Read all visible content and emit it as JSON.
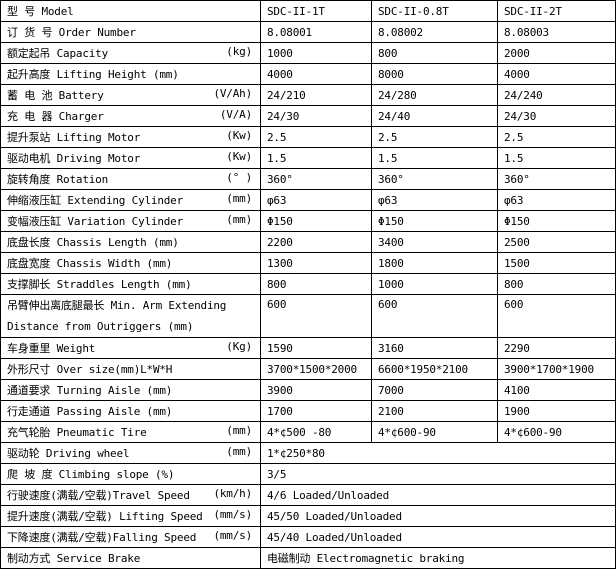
{
  "rows": [
    {
      "label": "型    号 Model",
      "unit": "",
      "values": [
        "SDC-II-1T",
        "SDC-II-0.8T",
        "SDC-II-2T"
      ]
    },
    {
      "label": "订 货 号 Order Number",
      "unit": "",
      "values": [
        "8.08001",
        "8.08002",
        "8.08003"
      ]
    },
    {
      "label": "额定起吊 Capacity",
      "unit": "(kg)",
      "values": [
        "1000",
        "800",
        "2000"
      ]
    },
    {
      "label": "起升高度 Lifting Height (mm)",
      "unit": "",
      "values": [
        "4000",
        "8000",
        "4000"
      ]
    },
    {
      "label": "蓄 电 池 Battery",
      "unit": "(V/Ah)",
      "values": [
        "24/210",
        "24/280",
        "24/240"
      ]
    },
    {
      "label": "充 电 器 Charger",
      "unit": "(V/A)",
      "values": [
        "24/30",
        "24/40",
        "24/30"
      ]
    },
    {
      "label": "提升泵站 Lifting Motor",
      "unit": "(Kw)",
      "values": [
        "2.5",
        "2.5",
        "2.5"
      ]
    },
    {
      "label": "驱动电机 Driving Motor",
      "unit": "(Kw)",
      "values": [
        "1.5",
        "1.5",
        "1.5"
      ]
    },
    {
      "label": "旋转角度 Rotation",
      "unit": "(° )",
      "values": [
        "360°",
        "360°",
        "360°"
      ]
    },
    {
      "label": "伸缩液压缸 Extending Cylinder",
      "unit": "(mm)",
      "values": [
        "φ63",
        "φ63",
        "φ63"
      ]
    },
    {
      "label": "变幅液压缸 Variation Cylinder",
      "unit": "(mm)",
      "values": [
        "Φ150",
        "Φ150",
        "Φ150"
      ]
    },
    {
      "label": "底盘长度 Chassis Length (mm)",
      "unit": "",
      "values": [
        "2200",
        "3400",
        "2500"
      ]
    },
    {
      "label": "底盘宽度 Chassis Width (mm)",
      "unit": "",
      "values": [
        "1300",
        "1800",
        "1500"
      ]
    },
    {
      "label": "支撑脚长 Straddles Length (mm)",
      "unit": "",
      "values": [
        "800",
        "1000",
        "800"
      ]
    },
    {
      "label": "吊臂伸出离底腿最长 Min. Arm Extending Distance from Outriggers (mm)",
      "unit": "",
      "values": [
        "600",
        "600",
        "600"
      ]
    },
    {
      "label": "车身重里 Weight",
      "unit": "(Kg)",
      "values": [
        "1590",
        "3160",
        "2290"
      ]
    },
    {
      "label": "外形尺寸 Over size(mm)L*W*H",
      "unit": "",
      "values": [
        "3700*1500*2000",
        "6600*1950*2100",
        "3900*1700*1900"
      ]
    },
    {
      "label": "通道要求 Turning Aisle (mm)",
      "unit": "",
      "values": [
        "3900",
        "7000",
        "4100"
      ]
    },
    {
      "label": "行走通道 Passing Aisle (mm)",
      "unit": "",
      "values": [
        "1700",
        "2100",
        "1900"
      ]
    },
    {
      "label": "充气轮胎 Pneumatic Tire",
      "unit": "(mm)",
      "values": [
        "4*¢500 -80",
        "4*¢600-90",
        "4*¢600-90"
      ]
    }
  ],
  "span_rows": [
    {
      "label": "驱动轮 Driving wheel",
      "unit": "(mm)",
      "value": "1*¢250*80"
    },
    {
      "label": "爬 坡 度 Climbing slope (%)",
      "unit": "",
      "value": "3/5"
    },
    {
      "label": "行驶速度(满载/空载)Travel Speed",
      "unit": "(km/h)",
      "value": "4/6 Loaded/Unloaded"
    },
    {
      "label": "提升速度(满载/空载) Lifting Speed",
      "unit": "(mm/s)",
      "value": "45/50 Loaded/Unloaded"
    },
    {
      "label": "下降速度(满载/空载)Falling Speed",
      "unit": "(mm/s)",
      "value": "45/40 Loaded/Unloaded"
    },
    {
      "label": "制动方式 Service Brake",
      "unit": "",
      "value": "电磁制动 Electromagnetic braking"
    }
  ]
}
